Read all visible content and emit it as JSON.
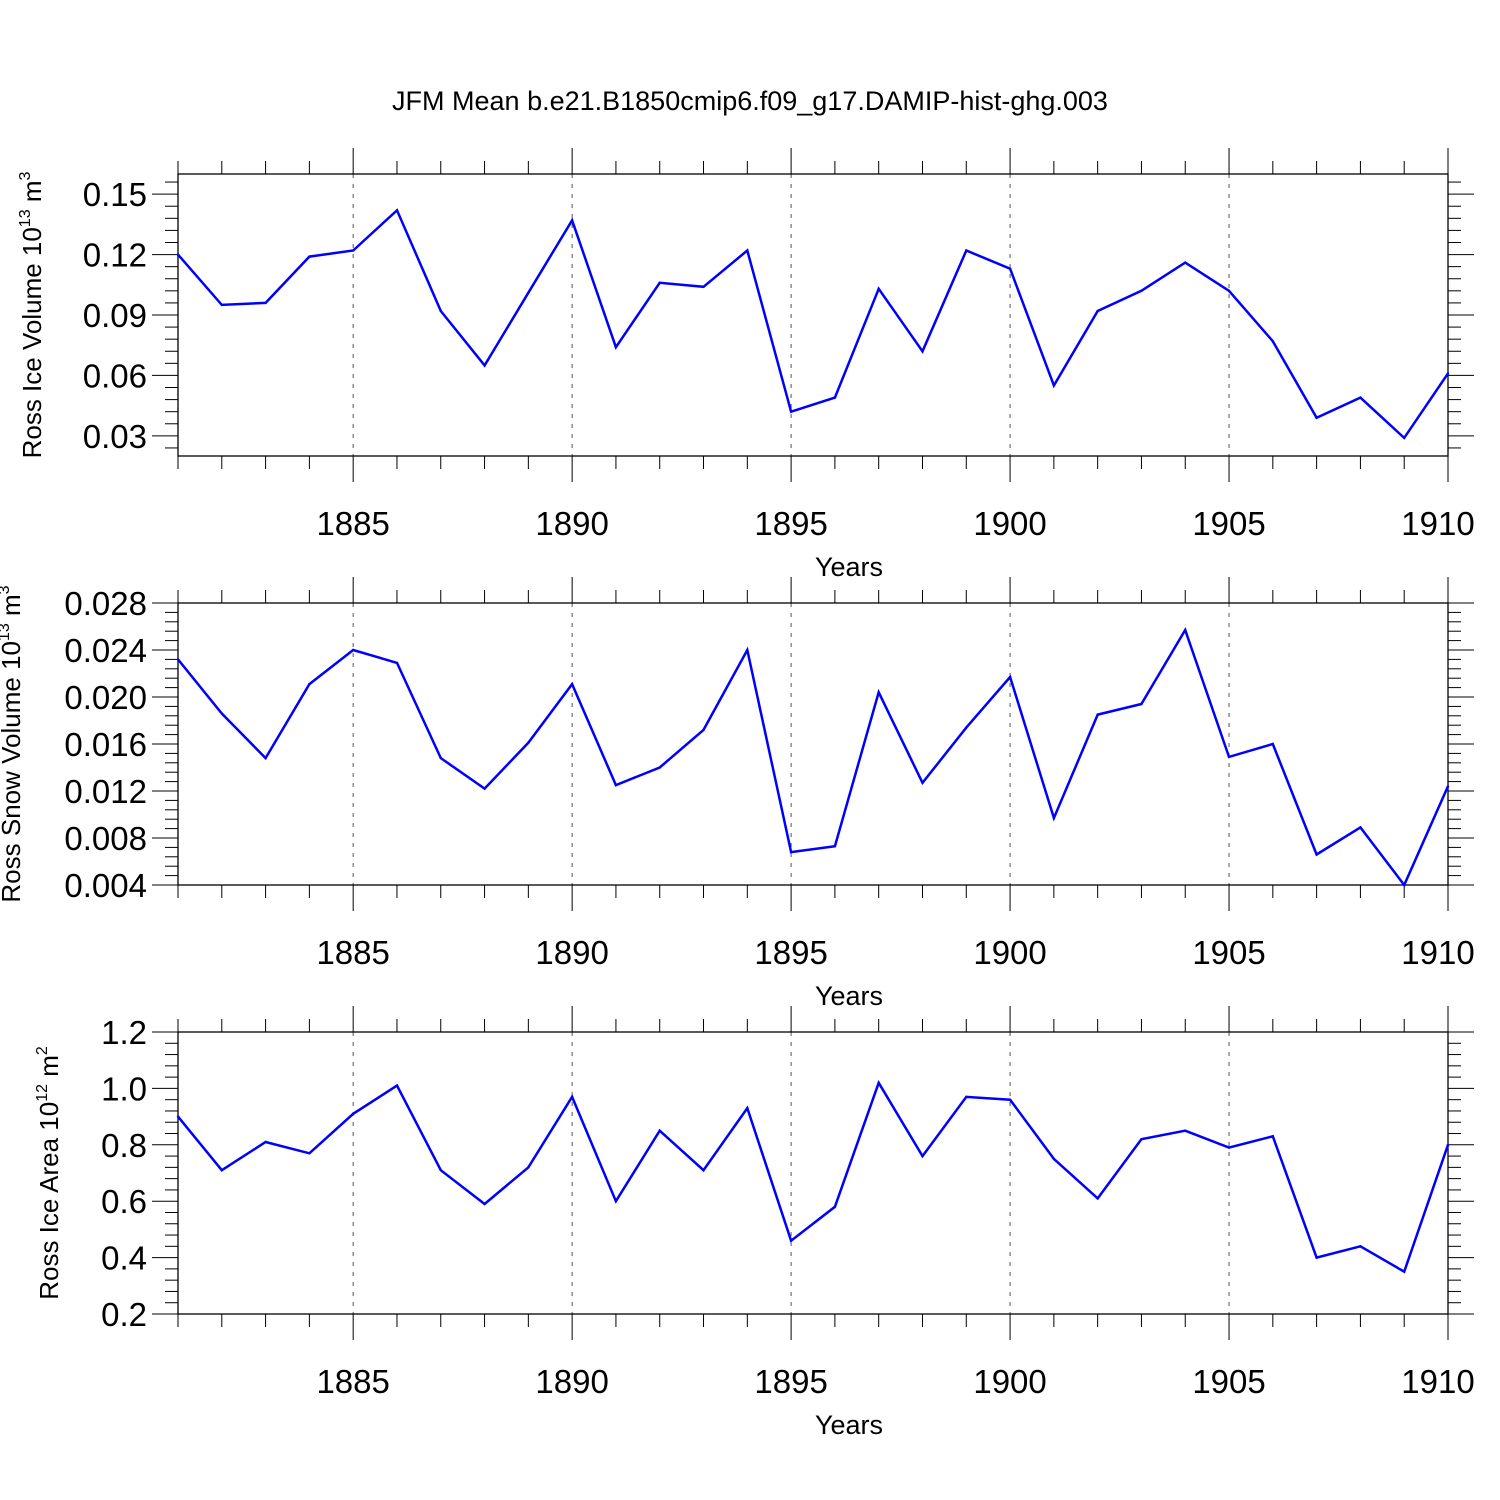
{
  "title": "JFM Mean b.e21.B1850cmip6.f09_g17.DAMIP-hist-ghg.003",
  "colors": {
    "line": "#0000ff",
    "axis": "#000000",
    "grid": "#555555"
  },
  "chart_data": [
    {
      "type": "line",
      "ylabel": {
        "main": "Ross Ice Volume 10",
        "exp": "13",
        "unit": " m",
        "unit_exp": "3"
      },
      "xlabel": "Years",
      "xlim": [
        1881,
        1910
      ],
      "ylim": [
        0.02,
        0.16
      ],
      "yticks": [
        0.03,
        0.06,
        0.09,
        0.12,
        0.15
      ],
      "ytick_labels": [
        "0.03",
        "0.06",
        "0.09",
        "0.12",
        "0.15"
      ],
      "xticks": [
        1885,
        1890,
        1895,
        1900,
        1905,
        1910
      ],
      "xtick_labels": [
        "1885",
        "1890",
        "1895",
        "1900",
        "1905",
        "1910"
      ],
      "grid": "vertical dashed at major x ticks",
      "x": [
        1881,
        1882,
        1883,
        1884,
        1885,
        1886,
        1887,
        1888,
        1889,
        1890,
        1891,
        1892,
        1893,
        1894,
        1895,
        1896,
        1897,
        1898,
        1899,
        1900,
        1901,
        1902,
        1903,
        1904,
        1905,
        1906,
        1907,
        1908,
        1909,
        1910
      ],
      "values": [
        0.12,
        0.095,
        0.096,
        0.119,
        0.122,
        0.142,
        0.092,
        0.065,
        0.101,
        0.137,
        0.074,
        0.106,
        0.104,
        0.122,
        0.042,
        0.049,
        0.103,
        0.072,
        0.122,
        0.113,
        0.055,
        0.092,
        0.102,
        0.116,
        0.102,
        0.077,
        0.039,
        0.049,
        0.029,
        0.061
      ]
    },
    {
      "type": "line",
      "ylabel": {
        "main": "Ross Snow Volume 10",
        "exp": "13",
        "unit": " m",
        "unit_exp": "3"
      },
      "xlabel": "Years",
      "xlim": [
        1881,
        1910
      ],
      "ylim": [
        0.004,
        0.028
      ],
      "yticks": [
        0.004,
        0.008,
        0.012,
        0.016,
        0.02,
        0.024,
        0.028
      ],
      "ytick_labels": [
        "0.004",
        "0.008",
        "0.012",
        "0.016",
        "0.020",
        "0.024",
        "0.028"
      ],
      "xticks": [
        1885,
        1890,
        1895,
        1900,
        1905,
        1910
      ],
      "xtick_labels": [
        "1885",
        "1890",
        "1895",
        "1900",
        "1905",
        "1910"
      ],
      "grid": "vertical dashed at major x ticks",
      "x": [
        1881,
        1882,
        1883,
        1884,
        1885,
        1886,
        1887,
        1888,
        1889,
        1890,
        1891,
        1892,
        1893,
        1894,
        1895,
        1896,
        1897,
        1898,
        1899,
        1900,
        1901,
        1902,
        1903,
        1904,
        1905,
        1906,
        1907,
        1908,
        1909,
        1910
      ],
      "values": [
        0.0232,
        0.0186,
        0.0148,
        0.0211,
        0.024,
        0.0229,
        0.0148,
        0.0122,
        0.0161,
        0.0211,
        0.0125,
        0.014,
        0.0172,
        0.024,
        0.0068,
        0.0073,
        0.0204,
        0.0127,
        0.0174,
        0.0217,
        0.0097,
        0.0185,
        0.0194,
        0.0257,
        0.0149,
        0.016,
        0.0066,
        0.0089,
        0.004,
        0.0124
      ]
    },
    {
      "type": "line",
      "ylabel": {
        "main": "Ross Ice Area 10",
        "exp": "12",
        "unit": " m",
        "unit_exp": "2"
      },
      "xlabel": "Years",
      "xlim": [
        1881,
        1910
      ],
      "ylim": [
        0.2,
        1.2
      ],
      "yticks": [
        0.2,
        0.4,
        0.6,
        0.8,
        1.0,
        1.2
      ],
      "ytick_labels": [
        "0.2",
        "0.4",
        "0.6",
        "0.8",
        "1.0",
        "1.2"
      ],
      "xticks": [
        1885,
        1890,
        1895,
        1900,
        1905,
        1910
      ],
      "xtick_labels": [
        "1885",
        "1890",
        "1895",
        "1900",
        "1905",
        "1910"
      ],
      "grid": "vertical dashed at major x ticks",
      "x": [
        1881,
        1882,
        1883,
        1884,
        1885,
        1886,
        1887,
        1888,
        1889,
        1890,
        1891,
        1892,
        1893,
        1894,
        1895,
        1896,
        1897,
        1898,
        1899,
        1900,
        1901,
        1902,
        1903,
        1904,
        1905,
        1906,
        1907,
        1908,
        1909,
        1910
      ],
      "values": [
        0.9,
        0.71,
        0.81,
        0.77,
        0.91,
        1.01,
        0.71,
        0.59,
        0.72,
        0.97,
        0.6,
        0.85,
        0.71,
        0.93,
        0.46,
        0.58,
        1.02,
        0.76,
        0.97,
        0.96,
        0.75,
        0.61,
        0.82,
        0.85,
        0.79,
        0.83,
        0.4,
        0.44,
        0.35,
        0.8
      ]
    }
  ]
}
